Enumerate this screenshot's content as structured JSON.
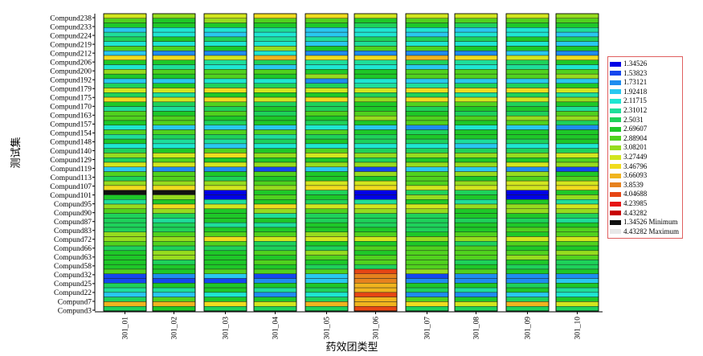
{
  "chart_data": {
    "type": "heatmap",
    "title": "",
    "xlabel": "药效团类型",
    "ylabel": "测试集",
    "x_categories": [
      "301_01",
      "301_02",
      "301_03",
      "301_04",
      "301_05",
      "301_06",
      "301_07",
      "301_08",
      "301_09",
      "301_10"
    ],
    "y_tick_labels": [
      "Compund238",
      "Compund233",
      "Compund224",
      "Compund219",
      "Compund212",
      "Compund206",
      "Compund200",
      "Compund192",
      "Compund179",
      "Compund175",
      "Compund170",
      "Compund163",
      "Compund157",
      "Compund154",
      "Compund148",
      "Compund140",
      "Compund129",
      "Compund119",
      "Compund113",
      "Compund107",
      "Compund101",
      "Compund95",
      "Compund90",
      "Compund87",
      "Compund83",
      "Compund72",
      "Compund66",
      "Compund63",
      "Compund58",
      "Compund32",
      "Compund25",
      "Compund22",
      "Compund7",
      "Compund3"
    ],
    "value_range": [
      1.34526,
      4.43282
    ],
    "legend": {
      "placement": "right",
      "levels": [
        {
          "label": "1.34526",
          "color": "#0000e6"
        },
        {
          "label": "1.53823",
          "color": "#1446ee"
        },
        {
          "label": "1.73121",
          "color": "#1e8cf0"
        },
        {
          "label": "1.92418",
          "color": "#28c8f0"
        },
        {
          "label": "2.11715",
          "color": "#1ee6d2"
        },
        {
          "label": "2.31012",
          "color": "#1ede9a"
        },
        {
          "label": "2.5031",
          "color": "#1ed25a"
        },
        {
          "label": "2.69607",
          "color": "#1ec828"
        },
        {
          "label": "2.88904",
          "color": "#50d21e"
        },
        {
          "label": "3.08201",
          "color": "#96dc1e"
        },
        {
          "label": "3.27449",
          "color": "#d2e61e"
        },
        {
          "label": "3.46796",
          "color": "#f0dc1e"
        },
        {
          "label": "3.66093",
          "color": "#f0b41e"
        },
        {
          "label": "3.8539",
          "color": "#e6821e"
        },
        {
          "label": "4.04688",
          "color": "#e64614"
        },
        {
          "label": "4.23985",
          "color": "#e61414"
        },
        {
          "label": "4.43282",
          "color": "#c80000"
        },
        {
          "label": "1.34526 Minimum",
          "color": "#111111"
        },
        {
          "label": "4.43282 Maximum",
          "color": "#e8e8e8"
        }
      ]
    }
  }
}
